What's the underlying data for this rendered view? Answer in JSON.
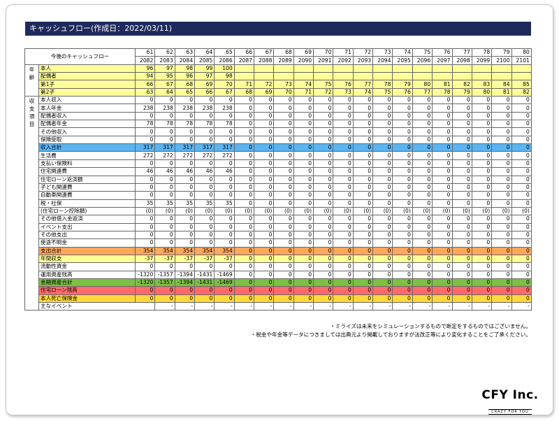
{
  "title": "キャッシュフロー(作成日：2022/03/11)",
  "header_label": "今後のキャッシュフロー",
  "ages": [
    "61",
    "62",
    "63",
    "64",
    "65",
    "66",
    "67",
    "68",
    "69",
    "70",
    "71",
    "72",
    "73",
    "74",
    "75",
    "76",
    "77",
    "78",
    "79",
    "80"
  ],
  "years": [
    "2082",
    "2083",
    "2084",
    "2085",
    "2086",
    "2087",
    "2088",
    "2089",
    "2090",
    "2091",
    "2092",
    "2093",
    "2094",
    "2095",
    "2096",
    "2097",
    "2098",
    "2099",
    "2100",
    "2101"
  ],
  "groups": [
    {
      "label": [
        "年",
        "齢"
      ],
      "rows": 4
    },
    {
      "label": [
        "収",
        "支",
        "項",
        "目"
      ],
      "rows": 30
    },
    {
      "label": [],
      "rows": 1
    }
  ],
  "colors": {
    "yellow": "#ffff99",
    "blue": "#5ab4f0",
    "orange": "#ffa75a",
    "green": "#7cc142",
    "red": "#ff6b6b",
    "gold": "#ffd93a",
    "title_bg": "#1f2a5c"
  },
  "rows": [
    {
      "label": "本人",
      "color": "yellow",
      "values": [
        "96",
        "97",
        "98",
        "99",
        "100",
        "",
        "",
        "",
        "",
        "",
        "",
        "",
        "",
        "",
        "",
        "",
        "",
        "",
        "",
        ""
      ]
    },
    {
      "label": "配偶者",
      "color": "yellow",
      "values": [
        "94",
        "95",
        "96",
        "97",
        "98",
        "",
        "",
        "",
        "",
        "",
        "",
        "",
        "",
        "",
        "",
        "",
        "",
        "",
        "",
        ""
      ]
    },
    {
      "label": "第1子",
      "color": "yellow",
      "values": [
        "66",
        "67",
        "68",
        "69",
        "70",
        "71",
        "72",
        "73",
        "74",
        "75",
        "76",
        "77",
        "78",
        "79",
        "80",
        "81",
        "82",
        "83",
        "84",
        "85"
      ]
    },
    {
      "label": "第2子",
      "color": "yellow",
      "values": [
        "63",
        "64",
        "65",
        "66",
        "67",
        "68",
        "69",
        "70",
        "71",
        "72",
        "73",
        "74",
        "75",
        "76",
        "77",
        "78",
        "79",
        "80",
        "81",
        "82"
      ]
    },
    {
      "label": "本人収入",
      "color": "",
      "values": [
        "0",
        "0",
        "0",
        "0",
        "0",
        "0",
        "0",
        "0",
        "0",
        "0",
        "0",
        "0",
        "0",
        "0",
        "0",
        "0",
        "0",
        "0",
        "0",
        "0"
      ]
    },
    {
      "label": "本人年金",
      "color": "",
      "values": [
        "238",
        "238",
        "238",
        "238",
        "238",
        "0",
        "0",
        "0",
        "0",
        "0",
        "0",
        "0",
        "0",
        "0",
        "0",
        "0",
        "0",
        "0",
        "0",
        "0"
      ]
    },
    {
      "label": "配偶者収入",
      "color": "",
      "values": [
        "0",
        "0",
        "0",
        "0",
        "0",
        "0",
        "0",
        "0",
        "0",
        "0",
        "0",
        "0",
        "0",
        "0",
        "0",
        "0",
        "0",
        "0",
        "0",
        "0"
      ]
    },
    {
      "label": "配偶者年金",
      "color": "",
      "values": [
        "78",
        "78",
        "78",
        "78",
        "78",
        "0",
        "0",
        "0",
        "0",
        "0",
        "0",
        "0",
        "0",
        "0",
        "0",
        "0",
        "0",
        "0",
        "0",
        "0"
      ]
    },
    {
      "label": "その他収入",
      "color": "",
      "values": [
        "0",
        "0",
        "0",
        "0",
        "0",
        "0",
        "0",
        "0",
        "0",
        "0",
        "0",
        "0",
        "0",
        "0",
        "0",
        "0",
        "0",
        "0",
        "0",
        "0"
      ]
    },
    {
      "label": "保険受取",
      "color": "",
      "values": [
        "0",
        "0",
        "0",
        "0",
        "0",
        "0",
        "0",
        "0",
        "0",
        "0",
        "0",
        "0",
        "0",
        "0",
        "0",
        "0",
        "0",
        "0",
        "0",
        "0"
      ]
    },
    {
      "label": "収入合計",
      "color": "blue",
      "values": [
        "317",
        "317",
        "317",
        "317",
        "317",
        "0",
        "0",
        "0",
        "0",
        "0",
        "0",
        "0",
        "0",
        "0",
        "0",
        "0",
        "0",
        "0",
        "0",
        "0"
      ]
    },
    {
      "label": "生活費",
      "color": "",
      "values": [
        "272",
        "272",
        "272",
        "272",
        "272",
        "0",
        "0",
        "0",
        "0",
        "0",
        "0",
        "0",
        "0",
        "0",
        "0",
        "0",
        "0",
        "0",
        "0",
        "0"
      ]
    },
    {
      "label": "支払い保険料",
      "color": "",
      "values": [
        "0",
        "0",
        "0",
        "0",
        "0",
        "0",
        "0",
        "0",
        "0",
        "0",
        "0",
        "0",
        "0",
        "0",
        "0",
        "0",
        "0",
        "0",
        "0",
        "0"
      ]
    },
    {
      "label": "住宅関連費",
      "color": "",
      "values": [
        "46",
        "46",
        "46",
        "46",
        "46",
        "0",
        "0",
        "0",
        "0",
        "0",
        "0",
        "0",
        "0",
        "0",
        "0",
        "0",
        "0",
        "0",
        "0",
        "0"
      ]
    },
    {
      "label": "住宅ローン返済額",
      "color": "",
      "values": [
        "0",
        "0",
        "0",
        "0",
        "0",
        "0",
        "0",
        "0",
        "0",
        "0",
        "0",
        "0",
        "0",
        "0",
        "0",
        "0",
        "0",
        "0",
        "0",
        "0"
      ]
    },
    {
      "label": "子ども関連費",
      "color": "",
      "values": [
        "0",
        "0",
        "0",
        "0",
        "0",
        "0",
        "0",
        "0",
        "0",
        "0",
        "0",
        "0",
        "0",
        "0",
        "0",
        "0",
        "0",
        "0",
        "0",
        "0"
      ]
    },
    {
      "label": "自動車関連費",
      "color": "",
      "values": [
        "0",
        "0",
        "0",
        "0",
        "0",
        "0",
        "0",
        "0",
        "0",
        "0",
        "0",
        "0",
        "0",
        "0",
        "0",
        "0",
        "0",
        "0",
        "0",
        "0"
      ]
    },
    {
      "label": "税・社保",
      "color": "",
      "values": [
        "35",
        "35",
        "35",
        "35",
        "35",
        "0",
        "0",
        "0",
        "0",
        "0",
        "0",
        "0",
        "0",
        "0",
        "0",
        "0",
        "0",
        "0",
        "0",
        "0"
      ]
    },
    {
      "label": "(住宅ローン控除額)",
      "color": "",
      "values": [
        "(0)",
        "(0)",
        "(0)",
        "(0)",
        "(0)",
        "(0)",
        "(0)",
        "(0)",
        "(0)",
        "(0)",
        "(0)",
        "(0)",
        "(0)",
        "(0)",
        "(0)",
        "(0)",
        "(0)",
        "(0)",
        "(0)",
        "(0)"
      ]
    },
    {
      "label": "その他借入金返済",
      "color": "",
      "values": [
        "0",
        "0",
        "0",
        "0",
        "0",
        "0",
        "0",
        "0",
        "0",
        "0",
        "0",
        "0",
        "0",
        "0",
        "0",
        "0",
        "0",
        "0",
        "0",
        "0"
      ]
    },
    {
      "label": "イベント支出",
      "color": "",
      "values": [
        "0",
        "0",
        "0",
        "0",
        "0",
        "0",
        "0",
        "0",
        "0",
        "0",
        "0",
        "0",
        "0",
        "0",
        "0",
        "0",
        "0",
        "0",
        "0",
        "0"
      ]
    },
    {
      "label": "その他支出",
      "color": "",
      "values": [
        "0",
        "0",
        "0",
        "0",
        "0",
        "0",
        "0",
        "0",
        "0",
        "0",
        "0",
        "0",
        "0",
        "0",
        "0",
        "0",
        "0",
        "0",
        "0",
        "0"
      ]
    },
    {
      "label": "使途不明金",
      "color": "",
      "values": [
        "0",
        "0",
        "0",
        "0",
        "0",
        "0",
        "0",
        "0",
        "0",
        "0",
        "0",
        "0",
        "0",
        "0",
        "0",
        "0",
        "0",
        "0",
        "0",
        "0"
      ]
    },
    {
      "label": "支出合計",
      "color": "orange",
      "values": [
        "354",
        "354",
        "354",
        "354",
        "354",
        "0",
        "0",
        "0",
        "0",
        "0",
        "0",
        "0",
        "0",
        "0",
        "0",
        "0",
        "0",
        "0",
        "0",
        "0"
      ]
    },
    {
      "label": "年間収支",
      "color": "yellow",
      "values": [
        "-37",
        "-37",
        "-37",
        "-37",
        "-37",
        "0",
        "0",
        "0",
        "0",
        "0",
        "0",
        "0",
        "0",
        "0",
        "0",
        "0",
        "0",
        "0",
        "0",
        "0"
      ]
    },
    {
      "label": "流動性資金",
      "color": "",
      "values": [
        "0",
        "0",
        "0",
        "0",
        "0",
        "0",
        "0",
        "0",
        "0",
        "0",
        "0",
        "0",
        "0",
        "0",
        "0",
        "0",
        "0",
        "0",
        "0",
        "0"
      ]
    },
    {
      "label": "運用資産残高",
      "color": "",
      "values": [
        "-1320",
        "-1357",
        "-1394",
        "-1431",
        "-1469",
        "0",
        "0",
        "0",
        "0",
        "0",
        "0",
        "0",
        "0",
        "0",
        "0",
        "0",
        "0",
        "0",
        "0",
        "0"
      ]
    },
    {
      "label": "金融資産合計",
      "color": "green",
      "values": [
        "-1320",
        "-1357",
        "-1394",
        "-1431",
        "-1469",
        "0",
        "0",
        "0",
        "0",
        "0",
        "0",
        "0",
        "0",
        "0",
        "0",
        "0",
        "0",
        "0",
        "0",
        "0"
      ]
    },
    {
      "label": "住宅ローン残高",
      "color": "red",
      "values": [
        "0",
        "0",
        "0",
        "0",
        "0",
        "0",
        "0",
        "0",
        "0",
        "0",
        "0",
        "0",
        "0",
        "0",
        "0",
        "0",
        "0",
        "0",
        "0",
        "0"
      ]
    },
    {
      "label": "本人死亡保険金",
      "color": "gold",
      "values": [
        "0",
        "0",
        "0",
        "0",
        "0",
        "0",
        "0",
        "0",
        "0",
        "0",
        "0",
        "0",
        "0",
        "0",
        "0",
        "0",
        "0",
        "0",
        "0",
        "0"
      ]
    },
    {
      "label": "主なイベント",
      "color": "",
      "values": [
        "-",
        "-",
        "-",
        "-",
        "-",
        "-",
        "-",
        "-",
        "-",
        "-",
        "-",
        "-",
        "-",
        "-",
        "-",
        "-",
        "-",
        "-",
        "-",
        "-"
      ]
    }
  ],
  "notes": [
    "・ミライズは未来をシミュレーションするもので断定をするものではございません。",
    "・税金や年金等データにつきましては出典元より掲載しておりますが法改正等により変化することをご了承ください。"
  ],
  "logo": {
    "main": "CFY Inc.",
    "sub": "CRAZY FOR YOU"
  }
}
